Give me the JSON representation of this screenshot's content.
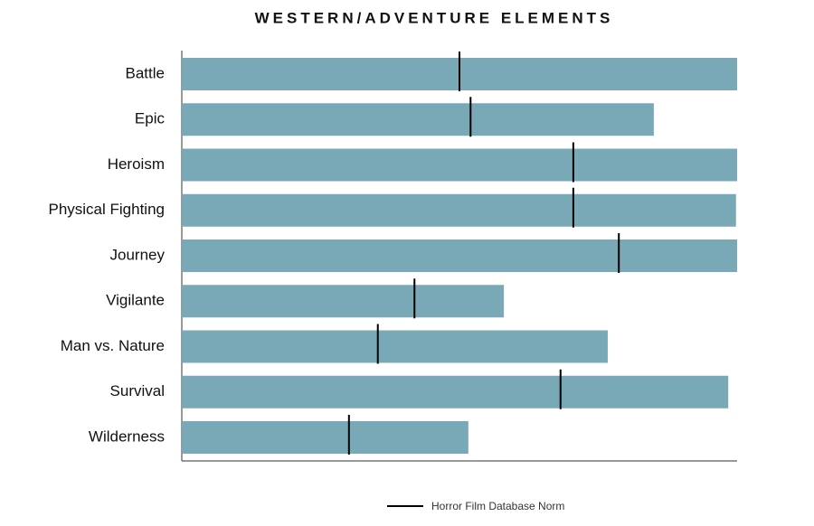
{
  "chart_data": {
    "type": "bar",
    "orientation": "horizontal",
    "title": "WESTERN/ADVENTURE ELEMENTS",
    "categories": [
      "Battle",
      "Epic",
      "Heroism",
      "Physical Fighting",
      "Journey",
      "Vigilante",
      "Man vs. Nature",
      "Survival",
      "Wilderness"
    ],
    "values": [
      100,
      85,
      100,
      99.8,
      100,
      58,
      76.7,
      98.4,
      51.6
    ],
    "color": "#79a9b7",
    "markers": {
      "name": "Horror Film Database Norm",
      "color": "#000000",
      "values": [
        50,
        52,
        70.5,
        70.5,
        78.7,
        41.9,
        35.3,
        68.2,
        30.1
      ]
    },
    "xlim": [
      0,
      100
    ]
  }
}
